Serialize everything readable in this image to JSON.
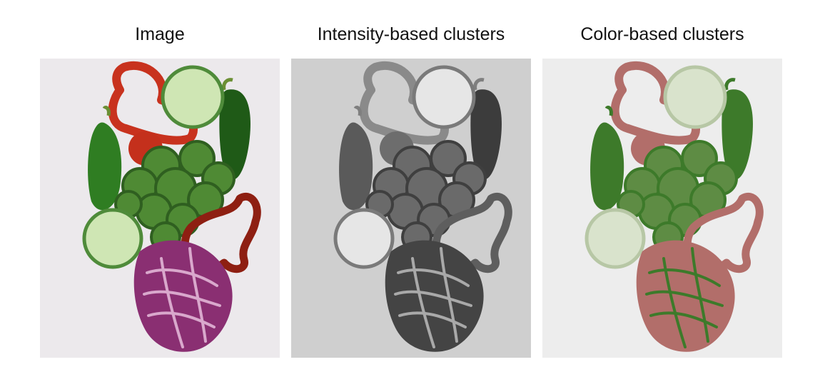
{
  "panels": [
    {
      "title": "Image",
      "variant": "photo"
    },
    {
      "title": "Intensity-based clusters",
      "variant": "gray"
    },
    {
      "title": "Color-based clusters",
      "variant": "color"
    }
  ],
  "palettes": {
    "photo": {
      "bg": "#ece9ec",
      "pepper_red": "#c8321e",
      "pepper_red_dark": "#8e1f12",
      "pepper_green": "#2f7d22",
      "pepper_green_dark": "#1f5a17",
      "cucumber": "#cfe6b4",
      "cucumber_rim": "#4f8b3a",
      "broccoli": "#4f8a34",
      "broccoli_dark": "#2f5f20",
      "tomato": "#c4301c",
      "cabbage": "#8a2f72",
      "cabbage_light": "#d9a8cc",
      "stem": "#6b8f34"
    },
    "gray": {
      "bg": "#cfcfcf",
      "pepper_red": "#8a8a8a",
      "pepper_red_dark": "#5e5e5e",
      "pepper_green": "#5a5a5a",
      "pepper_green_dark": "#3c3c3c",
      "cucumber": "#e6e6e6",
      "cucumber_rim": "#7a7a7a",
      "broccoli": "#6a6a6a",
      "broccoli_dark": "#3f3f3f",
      "tomato": "#6d6d6d",
      "cabbage": "#444444",
      "cabbage_light": "#a9a9a9",
      "stem": "#7f7f7f"
    },
    "color": {
      "bg": "#ededed",
      "pepper_red": "#b26e6a",
      "pepper_red_dark": "#b26e6a",
      "pepper_green": "#3d7a2a",
      "pepper_green_dark": "#3d7a2a",
      "cucumber": "#d9e3cc",
      "cucumber_rim": "#b7c7a5",
      "broccoli": "#5e8c44",
      "broccoli_dark": "#3d7a2a",
      "tomato": "#b26e6a",
      "cabbage": "#b26e6a",
      "cabbage_light": "#3d7a2a",
      "stem": "#3d7a2a"
    }
  }
}
